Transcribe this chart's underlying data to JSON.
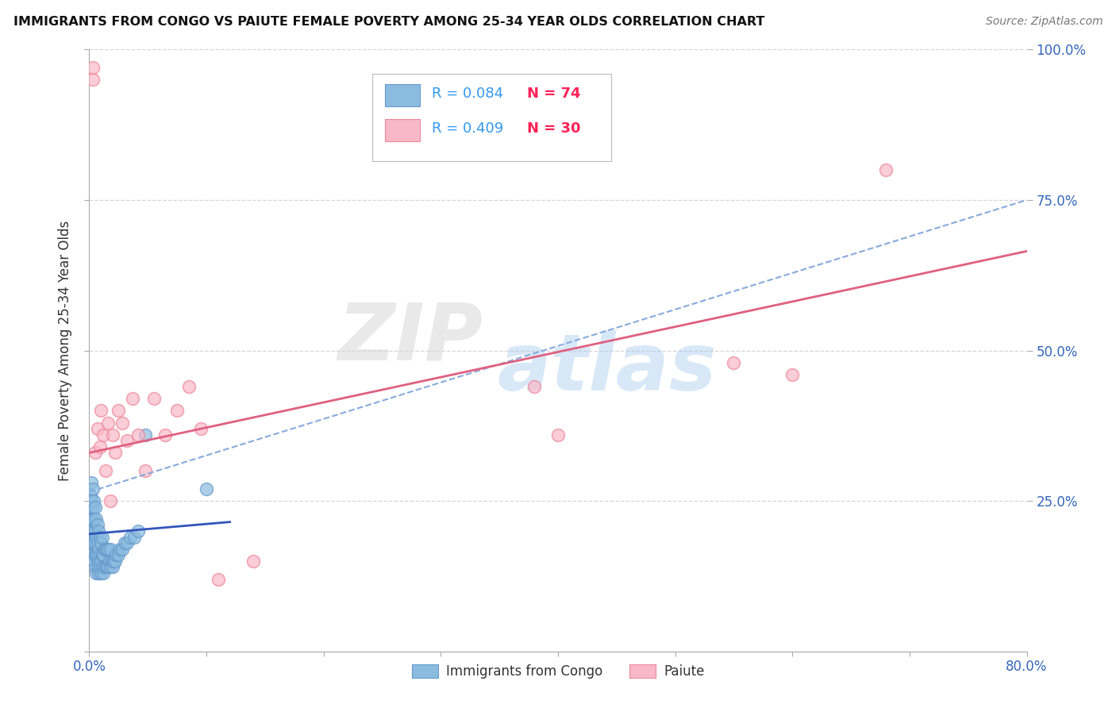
{
  "title": "IMMIGRANTS FROM CONGO VS PAIUTE FEMALE POVERTY AMONG 25-34 YEAR OLDS CORRELATION CHART",
  "source": "Source: ZipAtlas.com",
  "ylabel": "Female Poverty Among 25-34 Year Olds",
  "xlim": [
    0.0,
    0.8
  ],
  "ylim": [
    0.0,
    1.0
  ],
  "congo_color": "#8bbcdf",
  "congo_edge": "#6699cc",
  "paiute_color": "#f8b8c8",
  "paiute_edge": "#ee8899",
  "congo_line_color": "#3355bb",
  "paiute_line_color": "#e06080",
  "dash_line_color": "#88aadd",
  "congo_R": 0.084,
  "congo_N": 74,
  "paiute_R": 0.409,
  "paiute_N": 30,
  "legend_R_color": "#3399ee",
  "legend_N_color": "#ff2255",
  "watermark_top": "ZIP",
  "watermark_bottom": "atlas",
  "grid_color": "#cccccc",
  "grid_style": "--",
  "bg_color": "#ffffff",
  "congo_scatter_x": [
    0.001,
    0.001,
    0.001,
    0.001,
    0.002,
    0.002,
    0.002,
    0.002,
    0.002,
    0.003,
    0.003,
    0.003,
    0.003,
    0.003,
    0.003,
    0.004,
    0.004,
    0.004,
    0.004,
    0.004,
    0.005,
    0.005,
    0.005,
    0.005,
    0.005,
    0.006,
    0.006,
    0.006,
    0.006,
    0.007,
    0.007,
    0.007,
    0.007,
    0.008,
    0.008,
    0.008,
    0.008,
    0.009,
    0.009,
    0.009,
    0.01,
    0.01,
    0.01,
    0.011,
    0.011,
    0.011,
    0.012,
    0.012,
    0.013,
    0.013,
    0.014,
    0.014,
    0.015,
    0.015,
    0.016,
    0.016,
    0.017,
    0.018,
    0.018,
    0.019,
    0.02,
    0.021,
    0.022,
    0.023,
    0.025,
    0.026,
    0.028,
    0.03,
    0.032,
    0.035,
    0.038,
    0.042,
    0.048,
    0.1
  ],
  "congo_scatter_y": [
    0.2,
    0.22,
    0.24,
    0.26,
    0.18,
    0.2,
    0.22,
    0.25,
    0.28,
    0.16,
    0.18,
    0.2,
    0.22,
    0.24,
    0.27,
    0.15,
    0.18,
    0.2,
    0.22,
    0.25,
    0.14,
    0.16,
    0.18,
    0.2,
    0.24,
    0.13,
    0.16,
    0.19,
    0.22,
    0.14,
    0.16,
    0.18,
    0.21,
    0.13,
    0.15,
    0.17,
    0.2,
    0.14,
    0.16,
    0.19,
    0.13,
    0.15,
    0.18,
    0.14,
    0.16,
    0.19,
    0.13,
    0.16,
    0.14,
    0.17,
    0.14,
    0.17,
    0.14,
    0.17,
    0.14,
    0.17,
    0.15,
    0.14,
    0.17,
    0.15,
    0.14,
    0.15,
    0.15,
    0.16,
    0.16,
    0.17,
    0.17,
    0.18,
    0.18,
    0.19,
    0.19,
    0.2,
    0.36,
    0.27
  ],
  "paiute_scatter_x": [
    0.003,
    0.003,
    0.005,
    0.007,
    0.009,
    0.01,
    0.012,
    0.014,
    0.016,
    0.018,
    0.02,
    0.022,
    0.025,
    0.028,
    0.032,
    0.037,
    0.042,
    0.048,
    0.055,
    0.065,
    0.075,
    0.085,
    0.095,
    0.11,
    0.14,
    0.38,
    0.4,
    0.55,
    0.6,
    0.68
  ],
  "paiute_scatter_y": [
    0.95,
    0.97,
    0.33,
    0.37,
    0.34,
    0.4,
    0.36,
    0.3,
    0.38,
    0.25,
    0.36,
    0.33,
    0.4,
    0.38,
    0.35,
    0.42,
    0.36,
    0.3,
    0.42,
    0.36,
    0.4,
    0.44,
    0.37,
    0.12,
    0.15,
    0.44,
    0.36,
    0.48,
    0.46,
    0.8
  ],
  "congo_trendline": [
    0.0,
    0.12,
    0.195,
    0.215
  ],
  "paiute_trendline_x": [
    0.0,
    0.8
  ],
  "paiute_trendline_y": [
    0.33,
    0.665
  ],
  "dash_trendline_x": [
    0.0,
    0.8
  ],
  "dash_trendline_y": [
    0.265,
    0.75
  ]
}
